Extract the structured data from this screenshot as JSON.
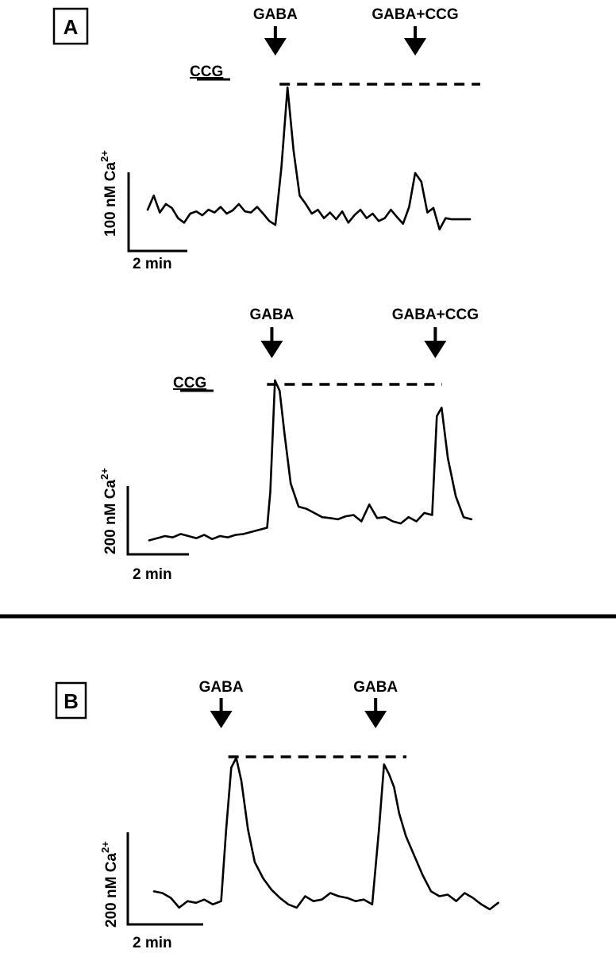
{
  "panel_a_label": "A",
  "panel_b_label": "B",
  "chart_data": [
    {
      "type": "line",
      "panel": "A",
      "title": "",
      "xlabel": "2 min",
      "ylabel": "100 nM Ca2+",
      "ylabel_main": "100 nM Ca",
      "ylabel_sup": "2+",
      "scale_time_label": "2 min",
      "scale_conc_label": "100",
      "bar_label": "CCG",
      "arrows": [
        {
          "label": "GABA",
          "time": 4.2
        },
        {
          "label": "GABA+CCG",
          "time": 8.8
        }
      ],
      "x_unit": "min",
      "y_unit": "nM (relative to trace minimum)",
      "series": [
        {
          "x": [
            0.0,
            0.2,
            0.4,
            0.6,
            0.8,
            1.0,
            1.2,
            1.4,
            1.6,
            1.8,
            2.0,
            2.2,
            2.4,
            2.6,
            2.8,
            3.0,
            3.2,
            3.4,
            3.6,
            3.8,
            4.0,
            4.2,
            4.4,
            4.6,
            4.8,
            5.0,
            5.2,
            5.4,
            5.6,
            5.8,
            6.0,
            6.2,
            6.4,
            6.6,
            6.8,
            7.0,
            7.2,
            7.4,
            7.6,
            7.8,
            8.0,
            8.2,
            8.4,
            8.6,
            8.8,
            9.0,
            9.2,
            9.4,
            9.6,
            9.8,
            10.0,
            10.2,
            10.4,
            10.6
          ],
          "y": [
            45,
            70,
            40,
            55,
            48,
            30,
            22,
            38,
            42,
            35,
            45,
            40,
            50,
            38,
            44,
            55,
            42,
            40,
            50,
            38,
            25,
            18,
            120,
            262,
            150,
            70,
            55,
            38,
            45,
            30,
            40,
            28,
            42,
            22,
            35,
            45,
            30,
            38,
            25,
            30,
            45,
            32,
            20,
            50,
            110,
            95,
            40,
            48,
            10,
            30,
            28,
            28,
            28,
            28
          ]
        }
      ]
    },
    {
      "type": "line",
      "panel": "A",
      "title": "",
      "xlabel": "2 min",
      "ylabel": "200 nM Ca2+",
      "ylabel_main": "200 nM Ca",
      "ylabel_sup": "2+",
      "scale_time_label": "2 min",
      "scale_conc_label": "200",
      "bar_label": "CCG",
      "arrows": [
        {
          "label": "GABA",
          "time": 3.9
        },
        {
          "label": "GABA+CCG",
          "time": 9.1
        }
      ],
      "x_unit": "min",
      "y_unit": "nM (relative to trace minimum)",
      "series": [
        {
          "x": [
            0.0,
            0.25,
            0.5,
            0.75,
            1.0,
            1.25,
            1.5,
            1.75,
            2.0,
            2.25,
            2.5,
            2.75,
            3.0,
            3.25,
            3.5,
            3.75,
            3.85,
            4.0,
            4.15,
            4.3,
            4.5,
            4.75,
            5.0,
            5.25,
            5.5,
            5.75,
            6.0,
            6.25,
            6.5,
            6.75,
            7.0,
            7.25,
            7.5,
            7.75,
            8.0,
            8.25,
            8.5,
            8.75,
            9.0,
            9.15,
            9.3,
            9.5,
            9.75,
            10.0,
            10.25
          ],
          "y": [
            5,
            10,
            15,
            12,
            20,
            15,
            10,
            18,
            8,
            15,
            12,
            18,
            20,
            25,
            30,
            35,
            120,
            385,
            360,
            260,
            140,
            85,
            80,
            70,
            60,
            58,
            55,
            62,
            65,
            50,
            90,
            58,
            60,
            50,
            45,
            60,
            50,
            70,
            65,
            300,
            320,
            200,
            110,
            60,
            55
          ]
        }
      ]
    },
    {
      "type": "line",
      "panel": "B",
      "title": "",
      "xlabel": "2 min",
      "ylabel": "200 nM Ca2+",
      "ylabel_main": "200 nM Ca",
      "ylabel_sup": "2+",
      "scale_time_label": "2 min",
      "scale_conc_label": "200",
      "arrows": [
        {
          "label": "GABA",
          "time": 2.0
        },
        {
          "label": "GABA",
          "time": 6.6
        }
      ],
      "x_unit": "min",
      "y_unit": "nM (relative to trace minimum)",
      "series": [
        {
          "x": [
            0.0,
            0.25,
            0.5,
            0.75,
            1.0,
            1.25,
            1.5,
            1.75,
            2.0,
            2.15,
            2.3,
            2.45,
            2.6,
            2.8,
            3.0,
            3.25,
            3.5,
            3.75,
            4.0,
            4.25,
            4.5,
            4.75,
            5.0,
            5.25,
            5.5,
            5.75,
            6.0,
            6.25,
            6.5,
            6.7,
            6.85,
            7.0,
            7.15,
            7.3,
            7.5,
            7.75,
            8.0,
            8.25,
            8.5,
            8.75,
            9.0,
            9.25,
            9.5,
            9.75,
            10.0,
            10.25
          ],
          "y": [
            60,
            55,
            40,
            10,
            30,
            25,
            35,
            20,
            30,
            250,
            440,
            470,
            400,
            250,
            150,
            100,
            65,
            40,
            20,
            10,
            45,
            30,
            35,
            55,
            45,
            40,
            30,
            35,
            20,
            250,
            450,
            420,
            380,
            300,
            230,
            170,
            110,
            60,
            45,
            50,
            30,
            55,
            40,
            20,
            5,
            25
          ]
        }
      ]
    }
  ]
}
